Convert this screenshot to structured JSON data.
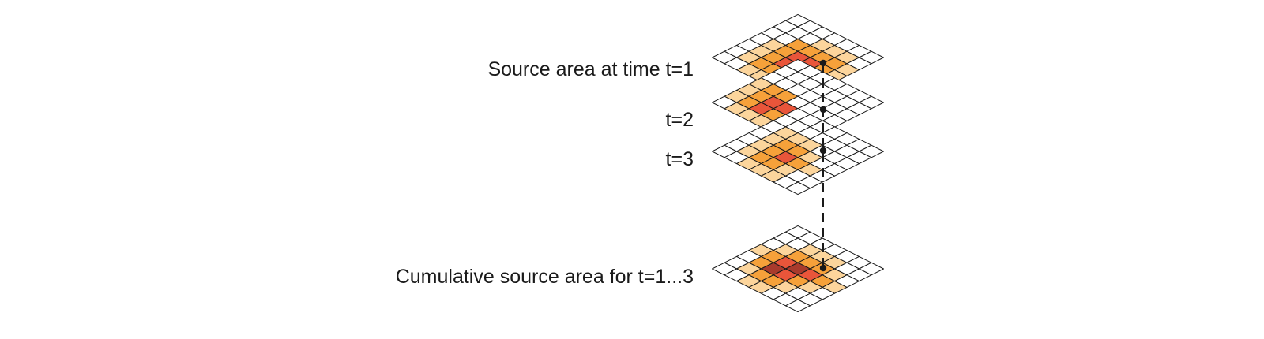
{
  "layers": [
    {
      "id": "t1",
      "label": "Source area at time t=1",
      "values": [
        [
          0,
          0,
          0,
          0,
          0,
          0,
          0
        ],
        [
          0,
          0,
          0,
          1,
          1,
          1,
          0
        ],
        [
          0,
          0,
          2,
          2,
          2,
          2,
          1
        ],
        [
          0,
          1,
          2,
          3,
          3,
          2,
          1
        ],
        [
          0,
          1,
          2,
          3,
          2,
          2,
          1
        ],
        [
          0,
          1,
          2,
          2,
          2,
          1,
          0
        ],
        [
          0,
          0,
          1,
          1,
          1,
          0,
          0
        ]
      ]
    },
    {
      "id": "t2",
      "label": "t=2",
      "values": [
        [
          0,
          0,
          0,
          0,
          0,
          0,
          0
        ],
        [
          0,
          0,
          0,
          0,
          0,
          0,
          0
        ],
        [
          0,
          0,
          0,
          0,
          0,
          0,
          0
        ],
        [
          1,
          2,
          2,
          0,
          0,
          0,
          0
        ],
        [
          1,
          2,
          3,
          3,
          2,
          0,
          0
        ],
        [
          1,
          2,
          3,
          2,
          2,
          0,
          0
        ],
        [
          0,
          1,
          1,
          1,
          1,
          0,
          0
        ]
      ]
    },
    {
      "id": "t3",
      "label": "t=3",
      "values": [
        [
          0,
          0,
          0,
          0,
          0,
          0,
          0
        ],
        [
          0,
          0,
          0,
          0,
          0,
          0,
          0
        ],
        [
          0,
          1,
          1,
          1,
          0,
          0,
          0
        ],
        [
          0,
          1,
          2,
          2,
          1,
          0,
          0
        ],
        [
          0,
          1,
          2,
          3,
          2,
          1,
          0
        ],
        [
          0,
          1,
          2,
          2,
          1,
          0,
          0
        ],
        [
          0,
          0,
          1,
          1,
          1,
          0,
          0
        ]
      ]
    },
    {
      "id": "cumulative",
      "label": "Cumulative source area for  t=1...3",
      "values": [
        [
          0,
          0,
          0,
          0,
          0,
          0,
          0
        ],
        [
          0,
          0,
          1,
          1,
          1,
          0,
          0
        ],
        [
          0,
          1,
          2,
          2,
          2,
          1,
          0
        ],
        [
          1,
          2,
          3,
          4,
          3,
          2,
          1
        ],
        [
          0,
          2,
          4,
          3,
          2,
          1,
          0
        ],
        [
          0,
          1,
          2,
          2,
          1,
          0,
          0
        ],
        [
          0,
          0,
          1,
          1,
          0,
          0,
          0
        ]
      ]
    }
  ],
  "colors": {
    "0": "#ffffff",
    "1": "#fcd59c",
    "2": "#f6a13a",
    "3": "#e9553a",
    "4": "#a83a2c",
    "line": "#1a1a1a"
  }
}
